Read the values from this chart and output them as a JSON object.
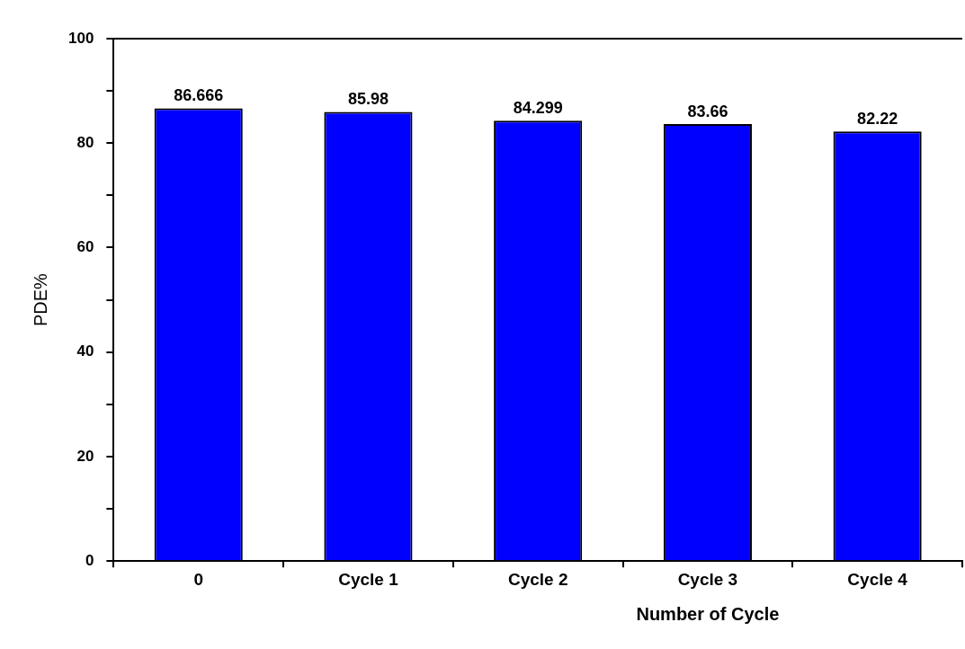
{
  "chart_data": {
    "type": "bar",
    "xlabel": "Number of Cycle",
    "ylabel": "PDE%",
    "categories": [
      "0",
      "Cycle 1",
      "Cycle 2",
      "Cycle 3",
      "Cycle 4"
    ],
    "values": [
      86.666,
      85.98,
      84.299,
      83.66,
      82.22
    ],
    "color": "#0000ff",
    "ylim": [
      0,
      100
    ],
    "yticks": [
      0,
      {
        "value": 10,
        "label": null
      },
      20,
      {
        "value": 30,
        "label": null
      },
      40,
      {
        "value": 50,
        "label": null
      },
      60,
      {
        "value": 70,
        "label": null
      },
      80,
      {
        "value": 90,
        "label": null
      },
      100
    ],
    "grid": false,
    "legend": false,
    "data_labels": true
  }
}
